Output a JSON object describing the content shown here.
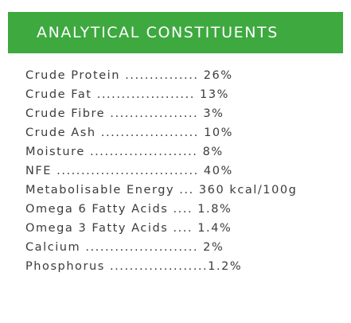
{
  "header": {
    "title": "ANALYTICAL CONSTITUENTS",
    "color": "#3da93f"
  },
  "constituents": [
    "Crude Protein ............... 26%",
    "Crude Fat .................... 13%",
    "Crude Fibre .................. 3%",
    "Crude Ash .................... 10%",
    "Moisture ...................... 8%",
    "NFE ............................. 40%",
    "Metabolisable Energy ... 360 kcal/100g",
    "Omega 6 Fatty Acids .... 1.8%",
    "Omega 3 Fatty Acids .... 1.4%",
    "Calcium ....................... 2%",
    "Phosphorus ....................1.2%"
  ]
}
